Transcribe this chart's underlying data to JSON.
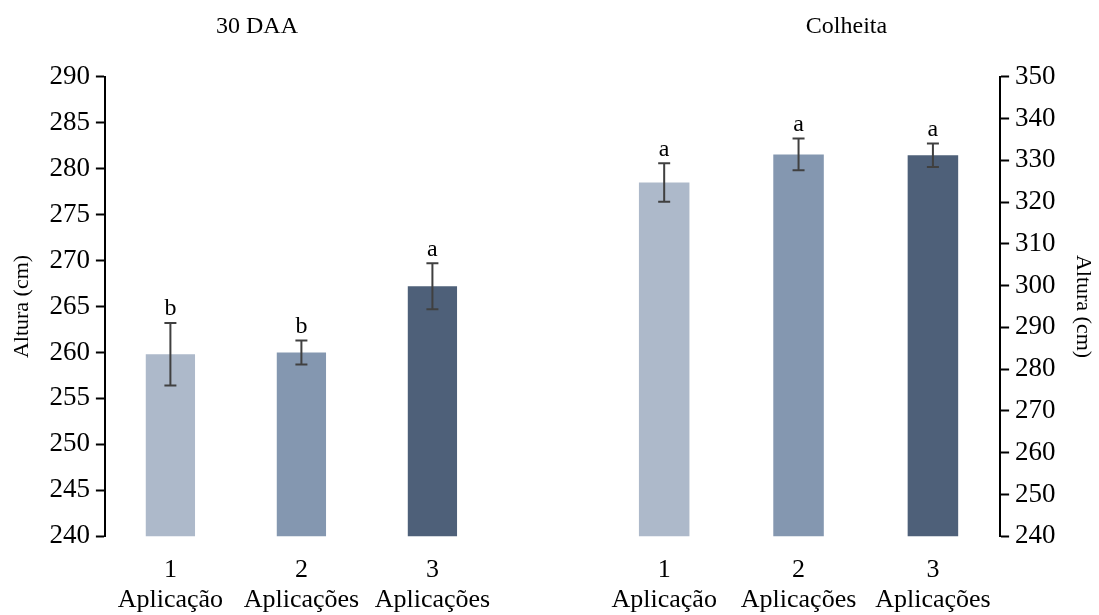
{
  "chart_data": [
    {
      "type": "bar",
      "title": "30 DAA",
      "ylabel": "Altura (cm)",
      "categories": [
        "1\nAplicação",
        "2\nAplicações",
        "3\nAplicações"
      ],
      "values": [
        259.8,
        260.0,
        267.2
      ],
      "colors": [
        "#adb9ca",
        "#8497b0",
        "#4e6079"
      ],
      "errors": [
        3.4,
        1.3,
        2.5
      ],
      "value_labels": [
        "b",
        "b",
        "a"
      ],
      "ylim": [
        240,
        290
      ],
      "yticks": [
        240,
        245,
        250,
        255,
        260,
        265,
        270,
        275,
        280,
        285,
        290
      ]
    },
    {
      "type": "bar",
      "title": "Colheita",
      "y2label": "Altura (cm)",
      "categories": [
        "1\nAplicação",
        "2\nAplicações",
        "3\nAplicações"
      ],
      "series": [
        {
          "values": [
            324.7,
            331.4,
            331.2
          ],
          "colors": [
            "#adb9ca",
            "#8497b0",
            "#4e6079"
          ],
          "errors": [
            4.6,
            3.8,
            2.8
          ],
          "value_labels": [
            "a",
            "a",
            "a"
          ],
          "axis": "y2"
        }
      ],
      "y2lim": [
        240,
        350
      ],
      "y2ticks": [
        240,
        250,
        260,
        270,
        280,
        290,
        300,
        310,
        320,
        330,
        340,
        350
      ]
    }
  ]
}
